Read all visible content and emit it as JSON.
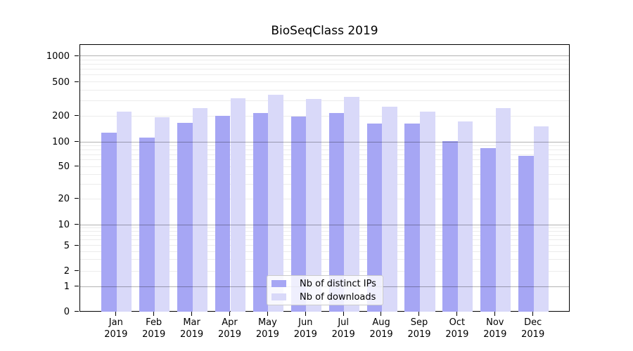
{
  "chart_data": {
    "type": "bar",
    "title": "BioSeqClass 2019",
    "categories": [
      "Jan 2019",
      "Feb 2019",
      "Mar 2019",
      "Apr 2019",
      "May 2019",
      "Jun 2019",
      "Jul 2019",
      "Aug 2019",
      "Sep 2019",
      "Oct 2019",
      "Nov 2019",
      "Dec 2019"
    ],
    "x_tick_months": [
      "Jan",
      "Feb",
      "Mar",
      "Apr",
      "May",
      "Jun",
      "Jul",
      "Aug",
      "Sep",
      "Oct",
      "Nov",
      "Dec"
    ],
    "x_tick_year": "2019",
    "series": [
      {
        "name": "Nb of distinct IPs",
        "color": "#a6a6f4",
        "values": [
          130,
          115,
          170,
          205,
          220,
          200,
          220,
          165,
          165,
          104,
          86,
          68
        ]
      },
      {
        "name": "Nb of downloads",
        "color": "#d9d9f9",
        "values": [
          230,
          195,
          250,
          325,
          360,
          320,
          340,
          260,
          230,
          175,
          250,
          155
        ]
      }
    ],
    "xlabel": "",
    "ylabel": "",
    "yscale": "symlog",
    "y_ticks": [
      0,
      1,
      2,
      5,
      10,
      20,
      50,
      100,
      200,
      500,
      1000
    ],
    "ylim": [
      0,
      1400
    ],
    "grid": "horizontal, major decades dark + minor light",
    "legend_position": "lower center inside plot"
  },
  "colors": {
    "background": "#ffffff",
    "axis": "#000000",
    "major_grid": "#b3b3b3",
    "minor_grid": "#e9e9e9",
    "legend_border": "#cbcbcb"
  }
}
